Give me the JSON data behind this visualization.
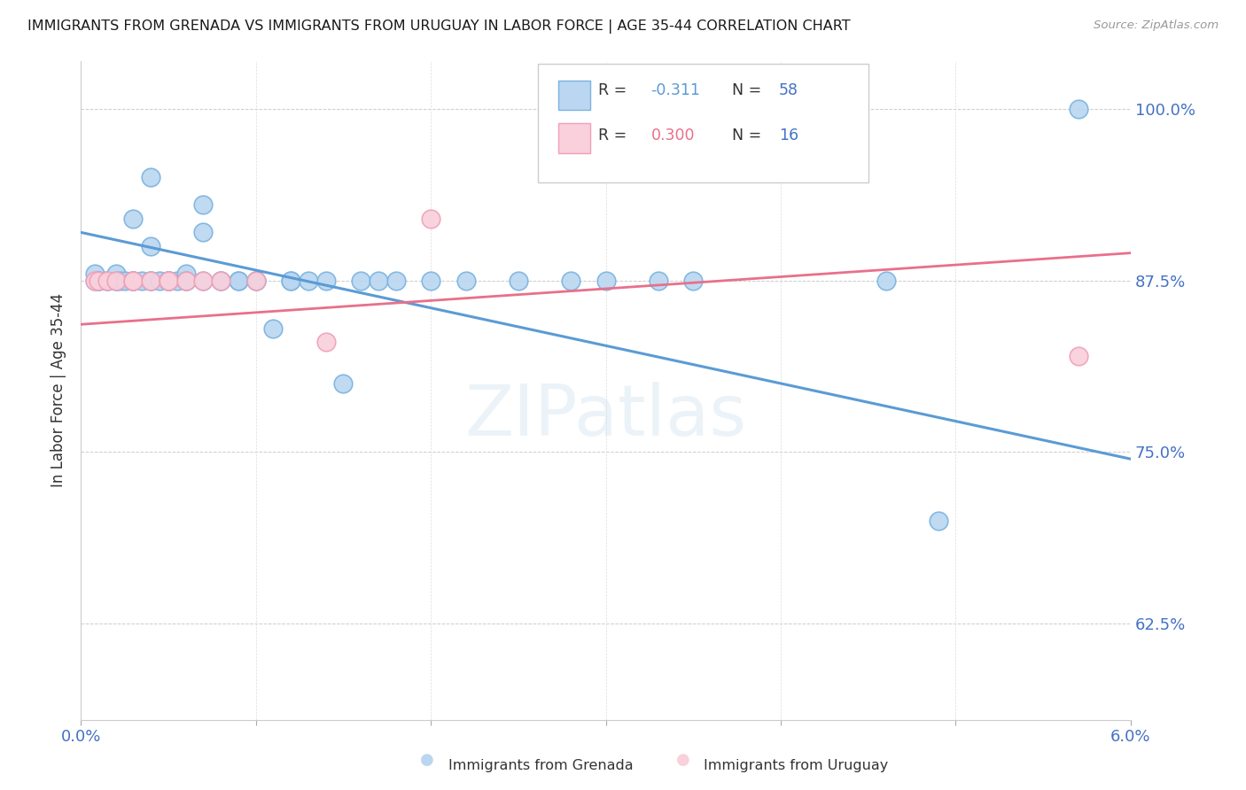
{
  "title": "IMMIGRANTS FROM GRENADA VS IMMIGRANTS FROM URUGUAY IN LABOR FORCE | AGE 35-44 CORRELATION CHART",
  "source": "Source: ZipAtlas.com",
  "ylabel": "In Labor Force | Age 35-44",
  "ytick_labels": [
    "100.0%",
    "87.5%",
    "75.0%",
    "62.5%"
  ],
  "ytick_values": [
    1.0,
    0.875,
    0.75,
    0.625
  ],
  "xlim": [
    0.0,
    0.06
  ],
  "ylim": [
    0.555,
    1.035
  ],
  "grenada_R": -0.311,
  "grenada_N": 58,
  "uruguay_R": 0.3,
  "uruguay_N": 16,
  "color_grenada_fill": "#bad6f0",
  "color_uruguay_fill": "#f9d0dc",
  "color_grenada_edge": "#7ab3e0",
  "color_uruguay_edge": "#f0a0b8",
  "color_grenada_line": "#5b9bd5",
  "color_uruguay_line": "#e8708a",
  "legend_label_grenada": "Immigrants from Grenada",
  "legend_label_uruguay": "Immigrants from Uruguay",
  "title_color": "#1a1a1a",
  "axis_label_color": "#4472c4",
  "watermark": "ZIPatlas",
  "grenada_line_x": [
    0.0,
    0.06
  ],
  "grenada_line_y": [
    0.91,
    0.745
  ],
  "uruguay_line_x": [
    0.0,
    0.06
  ],
  "uruguay_line_y": [
    0.843,
    0.895
  ],
  "grenada_x": [
    0.0008,
    0.0008,
    0.001,
    0.001,
    0.001,
    0.0015,
    0.0015,
    0.002,
    0.002,
    0.002,
    0.0022,
    0.0025,
    0.003,
    0.003,
    0.003,
    0.003,
    0.0035,
    0.004,
    0.004,
    0.004,
    0.004,
    0.0045,
    0.005,
    0.005,
    0.005,
    0.005,
    0.0055,
    0.006,
    0.006,
    0.006,
    0.007,
    0.007,
    0.007,
    0.008,
    0.008,
    0.009,
    0.009,
    0.01,
    0.01,
    0.011,
    0.012,
    0.012,
    0.013,
    0.014,
    0.015,
    0.016,
    0.017,
    0.018,
    0.02,
    0.022,
    0.025,
    0.028,
    0.03,
    0.033,
    0.035,
    0.046,
    0.049,
    0.057
  ],
  "grenada_y": [
    0.875,
    0.88,
    0.875,
    0.875,
    0.875,
    0.875,
    0.875,
    0.875,
    0.875,
    0.88,
    0.875,
    0.875,
    0.875,
    0.875,
    0.875,
    0.92,
    0.875,
    0.875,
    0.875,
    0.9,
    0.95,
    0.875,
    0.875,
    0.875,
    0.875,
    0.875,
    0.875,
    0.875,
    0.88,
    0.875,
    0.875,
    0.91,
    0.93,
    0.875,
    0.875,
    0.875,
    0.875,
    0.875,
    0.875,
    0.84,
    0.875,
    0.875,
    0.875,
    0.875,
    0.8,
    0.875,
    0.875,
    0.875,
    0.875,
    0.875,
    0.875,
    0.875,
    0.875,
    0.875,
    0.875,
    0.875,
    0.7,
    1.0
  ],
  "uruguay_x": [
    0.0008,
    0.001,
    0.0015,
    0.002,
    0.003,
    0.003,
    0.004,
    0.005,
    0.005,
    0.006,
    0.007,
    0.008,
    0.01,
    0.014,
    0.02,
    0.057
  ],
  "uruguay_y": [
    0.875,
    0.875,
    0.875,
    0.875,
    0.875,
    0.875,
    0.875,
    0.875,
    0.875,
    0.875,
    0.875,
    0.875,
    0.875,
    0.83,
    0.92,
    0.82
  ]
}
